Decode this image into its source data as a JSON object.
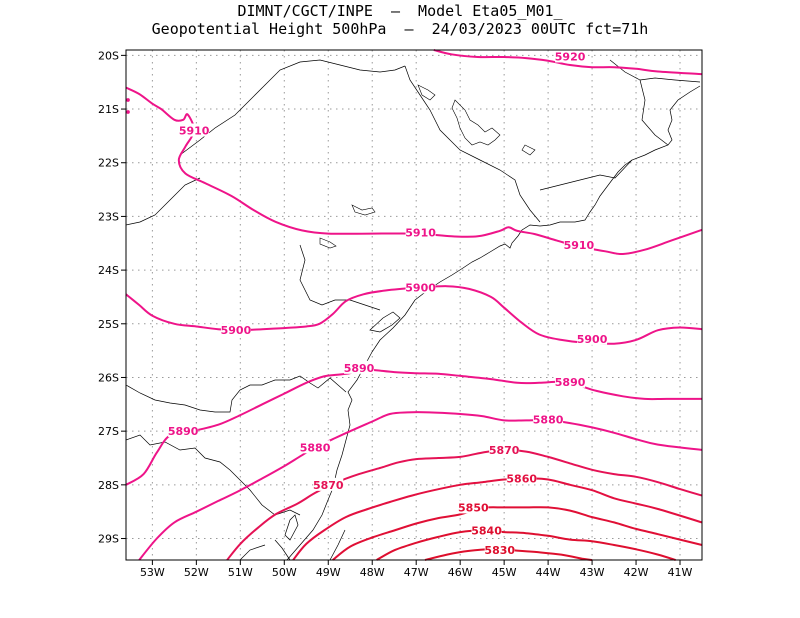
{
  "title": {
    "line1": "DIMNT/CGCT/INPE  –  Model Eta05_M01_",
    "line2": "Geopotential Height 500hPa  –  24/03/2023 00UTC fct=71h"
  },
  "chart_data": {
    "type": "contour",
    "variable": "Geopotential Height 500hPa",
    "lon_range": [
      -53.6,
      -40.5
    ],
    "lat_range": [
      -29.4,
      -19.9
    ],
    "lon_ticks": [
      "53W",
      "52W",
      "51W",
      "50W",
      "49W",
      "48W",
      "47W",
      "46W",
      "45W",
      "44W",
      "43W",
      "42W",
      "41W"
    ],
    "lat_ticks": [
      "20S",
      "21S",
      "22S",
      "23S",
      "24S",
      "25S",
      "26S",
      "27S",
      "28S",
      "29S"
    ],
    "grid": true,
    "colors": {
      "contour_high": "#ee1489",
      "contour_low": "#dd1030",
      "coast": "#000000",
      "grid": "#9a9a9a"
    },
    "contours": [
      {
        "level": 5920,
        "label": "5920",
        "color": "#ee1489",
        "points": [
          [
            -46.6,
            -19.9
          ],
          [
            -46.2,
            -19.98
          ],
          [
            -45.6,
            -20.03
          ],
          [
            -45.0,
            -20.03
          ],
          [
            -44.5,
            -20.05
          ],
          [
            -44.0,
            -20.1
          ],
          [
            -43.5,
            -20.18
          ],
          [
            -43.0,
            -20.22
          ],
          [
            -42.5,
            -20.22
          ],
          [
            -42.0,
            -20.25
          ],
          [
            -41.5,
            -20.3
          ],
          [
            -40.5,
            -20.35
          ]
        ],
        "labels": [
          [
            -43.5,
            -20.02
          ]
        ]
      },
      {
        "level": 5910,
        "label": "5910",
        "color": "#ee1489",
        "points": [
          [
            -53.6,
            -20.6
          ],
          [
            -53.3,
            -20.72
          ],
          [
            -53.0,
            -20.9
          ],
          [
            -52.8,
            -21.0
          ],
          [
            -52.5,
            -21.2
          ],
          [
            -52.3,
            -21.2
          ],
          [
            -52.2,
            -21.1
          ],
          [
            -52.05,
            -21.4
          ],
          [
            -52.25,
            -21.7
          ],
          [
            -52.4,
            -21.95
          ],
          [
            -52.25,
            -22.2
          ],
          [
            -51.8,
            -22.38
          ],
          [
            -51.2,
            -22.62
          ],
          [
            -50.7,
            -22.88
          ],
          [
            -50.2,
            -23.1
          ],
          [
            -49.6,
            -23.26
          ],
          [
            -49.0,
            -23.32
          ],
          [
            -48.0,
            -23.32
          ],
          [
            -47.0,
            -23.32
          ],
          [
            -46.2,
            -23.37
          ],
          [
            -45.6,
            -23.37
          ],
          [
            -45.1,
            -23.27
          ],
          [
            -44.9,
            -23.2
          ],
          [
            -44.7,
            -23.27
          ],
          [
            -44.3,
            -23.33
          ],
          [
            -43.8,
            -23.45
          ],
          [
            -43.3,
            -23.56
          ],
          [
            -42.7,
            -23.65
          ],
          [
            -42.3,
            -23.7
          ],
          [
            -41.8,
            -23.62
          ],
          [
            -41.2,
            -23.45
          ],
          [
            -40.5,
            -23.25
          ]
        ],
        "labels": [
          [
            -52.05,
            -21.4
          ],
          [
            -46.9,
            -23.3
          ],
          [
            -43.3,
            -23.53
          ]
        ]
      },
      {
        "level": 5900,
        "label": "5900",
        "color": "#ee1489",
        "points": [
          [
            -53.6,
            -24.45
          ],
          [
            -53.3,
            -24.65
          ],
          [
            -53.0,
            -24.85
          ],
          [
            -52.5,
            -25.0
          ],
          [
            -52.0,
            -25.05
          ],
          [
            -51.5,
            -25.1
          ],
          [
            -51.0,
            -25.12
          ],
          [
            -50.5,
            -25.1
          ],
          [
            -50.0,
            -25.08
          ],
          [
            -49.5,
            -25.05
          ],
          [
            -49.2,
            -25.0
          ],
          [
            -48.9,
            -24.82
          ],
          [
            -48.6,
            -24.58
          ],
          [
            -48.2,
            -24.45
          ],
          [
            -47.7,
            -24.38
          ],
          [
            -47.0,
            -24.33
          ],
          [
            -46.3,
            -24.3
          ],
          [
            -45.8,
            -24.35
          ],
          [
            -45.3,
            -24.5
          ],
          [
            -45.0,
            -24.7
          ],
          [
            -44.6,
            -24.98
          ],
          [
            -44.2,
            -25.2
          ],
          [
            -43.7,
            -25.3
          ],
          [
            -43.2,
            -25.35
          ],
          [
            -42.5,
            -25.37
          ],
          [
            -42.0,
            -25.3
          ],
          [
            -41.5,
            -25.12
          ],
          [
            -41.0,
            -25.07
          ],
          [
            -40.5,
            -25.1
          ]
        ],
        "labels": [
          [
            -51.1,
            -25.12
          ],
          [
            -46.9,
            -24.32
          ],
          [
            -43.0,
            -25.28
          ]
        ]
      },
      {
        "level": 5890,
        "label": "5890",
        "color": "#ee1489",
        "points": [
          [
            -53.6,
            -28.0
          ],
          [
            -53.2,
            -27.8
          ],
          [
            -52.9,
            -27.4
          ],
          [
            -52.6,
            -27.08
          ],
          [
            -52.1,
            -27.0
          ],
          [
            -51.5,
            -26.88
          ],
          [
            -51.0,
            -26.7
          ],
          [
            -50.5,
            -26.5
          ],
          [
            -50.0,
            -26.3
          ],
          [
            -49.5,
            -26.1
          ],
          [
            -49.1,
            -25.98
          ],
          [
            -48.8,
            -25.95
          ],
          [
            -48.5,
            -25.92
          ],
          [
            -48.2,
            -25.85
          ],
          [
            -47.5,
            -25.9
          ],
          [
            -47.0,
            -25.92
          ],
          [
            -46.5,
            -25.93
          ],
          [
            -46.0,
            -25.97
          ],
          [
            -45.3,
            -26.03
          ],
          [
            -44.7,
            -26.1
          ],
          [
            -44.2,
            -26.1
          ],
          [
            -43.7,
            -26.08
          ],
          [
            -43.3,
            -26.15
          ],
          [
            -42.9,
            -26.25
          ],
          [
            -42.3,
            -26.35
          ],
          [
            -41.8,
            -26.4
          ],
          [
            -41.3,
            -26.4
          ],
          [
            -40.5,
            -26.4
          ]
        ],
        "labels": [
          [
            -52.3,
            -27.0
          ],
          [
            -48.3,
            -25.82
          ],
          [
            -43.5,
            -26.08
          ]
        ]
      },
      {
        "level": 5880,
        "label": "5880",
        "color": "#ee1489",
        "points": [
          [
            -53.3,
            -29.4
          ],
          [
            -52.9,
            -29.0
          ],
          [
            -52.5,
            -28.7
          ],
          [
            -52.0,
            -28.5
          ],
          [
            -51.5,
            -28.3
          ],
          [
            -51.0,
            -28.1
          ],
          [
            -50.5,
            -27.88
          ],
          [
            -50.0,
            -27.65
          ],
          [
            -49.6,
            -27.45
          ],
          [
            -49.3,
            -27.3
          ],
          [
            -48.9,
            -27.15
          ],
          [
            -48.5,
            -27.0
          ],
          [
            -48.0,
            -26.82
          ],
          [
            -47.6,
            -26.68
          ],
          [
            -47.2,
            -26.65
          ],
          [
            -46.7,
            -26.65
          ],
          [
            -46.0,
            -26.68
          ],
          [
            -45.5,
            -26.72
          ],
          [
            -45.0,
            -26.8
          ],
          [
            -44.5,
            -26.8
          ],
          [
            -44.0,
            -26.8
          ],
          [
            -43.5,
            -26.85
          ],
          [
            -43.0,
            -26.93
          ],
          [
            -42.5,
            -27.03
          ],
          [
            -42.0,
            -27.15
          ],
          [
            -41.5,
            -27.25
          ],
          [
            -40.5,
            -27.35
          ]
        ],
        "labels": [
          [
            -49.3,
            -27.3
          ],
          [
            -44.0,
            -26.78
          ]
        ]
      },
      {
        "level": 5870,
        "label": "5870",
        "color": "#e51255",
        "points": [
          [
            -51.3,
            -29.4
          ],
          [
            -51.0,
            -29.1
          ],
          [
            -50.6,
            -28.8
          ],
          [
            -50.2,
            -28.55
          ],
          [
            -49.7,
            -28.35
          ],
          [
            -49.3,
            -28.15
          ],
          [
            -48.8,
            -27.95
          ],
          [
            -48.3,
            -27.8
          ],
          [
            -47.8,
            -27.68
          ],
          [
            -47.4,
            -27.58
          ],
          [
            -47.0,
            -27.52
          ],
          [
            -46.5,
            -27.5
          ],
          [
            -46.0,
            -27.48
          ],
          [
            -45.5,
            -27.4
          ],
          [
            -45.0,
            -27.35
          ],
          [
            -44.5,
            -27.38
          ],
          [
            -44.0,
            -27.48
          ],
          [
            -43.5,
            -27.6
          ],
          [
            -43.0,
            -27.72
          ],
          [
            -42.5,
            -27.8
          ],
          [
            -42.0,
            -27.85
          ],
          [
            -41.5,
            -27.95
          ],
          [
            -41.0,
            -28.08
          ],
          [
            -40.5,
            -28.2
          ]
        ],
        "labels": [
          [
            -49.0,
            -28.0
          ],
          [
            -45.0,
            -27.35
          ]
        ]
      },
      {
        "level": 5860,
        "label": "5860",
        "color": "#e31040",
        "points": [
          [
            -49.8,
            -29.4
          ],
          [
            -49.5,
            -29.1
          ],
          [
            -49.1,
            -28.85
          ],
          [
            -48.6,
            -28.6
          ],
          [
            -48.1,
            -28.45
          ],
          [
            -47.6,
            -28.32
          ],
          [
            -47.1,
            -28.2
          ],
          [
            -46.6,
            -28.1
          ],
          [
            -46.0,
            -28.0
          ],
          [
            -45.5,
            -27.95
          ],
          [
            -45.0,
            -27.9
          ],
          [
            -44.5,
            -27.88
          ],
          [
            -44.0,
            -27.9
          ],
          [
            -43.5,
            -28.0
          ],
          [
            -43.0,
            -28.1
          ],
          [
            -42.5,
            -28.25
          ],
          [
            -42.0,
            -28.35
          ],
          [
            -41.5,
            -28.45
          ],
          [
            -40.5,
            -28.7
          ]
        ],
        "labels": [
          [
            -44.6,
            -27.88
          ]
        ]
      },
      {
        "level": 5850,
        "label": "5850",
        "color": "#e00f35",
        "points": [
          [
            -48.9,
            -29.4
          ],
          [
            -48.5,
            -29.15
          ],
          [
            -48.0,
            -28.98
          ],
          [
            -47.5,
            -28.85
          ],
          [
            -47.0,
            -28.72
          ],
          [
            -46.5,
            -28.62
          ],
          [
            -46.0,
            -28.55
          ],
          [
            -45.5,
            -28.43
          ],
          [
            -45.0,
            -28.42
          ],
          [
            -44.5,
            -28.42
          ],
          [
            -44.0,
            -28.42
          ],
          [
            -43.5,
            -28.48
          ],
          [
            -43.0,
            -28.6
          ],
          [
            -42.5,
            -28.7
          ],
          [
            -42.0,
            -28.82
          ],
          [
            -41.5,
            -28.92
          ],
          [
            -41.0,
            -29.02
          ],
          [
            -40.5,
            -29.12
          ]
        ],
        "labels": [
          [
            -45.7,
            -28.42
          ]
        ]
      },
      {
        "level": 5840,
        "label": "5840",
        "color": "#de0f30",
        "points": [
          [
            -47.9,
            -29.4
          ],
          [
            -47.5,
            -29.22
          ],
          [
            -47.0,
            -29.08
          ],
          [
            -46.5,
            -28.97
          ],
          [
            -46.0,
            -28.88
          ],
          [
            -45.5,
            -28.85
          ],
          [
            -45.0,
            -28.88
          ],
          [
            -44.5,
            -28.9
          ],
          [
            -44.0,
            -28.95
          ],
          [
            -43.5,
            -29.02
          ],
          [
            -43.0,
            -29.05
          ],
          [
            -42.5,
            -29.12
          ],
          [
            -42.0,
            -29.2
          ],
          [
            -41.5,
            -29.3
          ],
          [
            -41.1,
            -29.4
          ]
        ],
        "labels": [
          [
            -45.4,
            -28.85
          ]
        ]
      },
      {
        "level": 5830,
        "label": "5830",
        "color": "#dd0f2c",
        "points": [
          [
            -46.8,
            -29.4
          ],
          [
            -46.3,
            -29.3
          ],
          [
            -45.8,
            -29.23
          ],
          [
            -45.3,
            -29.2
          ],
          [
            -44.8,
            -29.22
          ],
          [
            -44.3,
            -29.25
          ],
          [
            -43.7,
            -29.3
          ],
          [
            -43.2,
            -29.38
          ],
          [
            -43.0,
            -29.4
          ]
        ],
        "labels": [
          [
            -45.1,
            -29.21
          ]
        ]
      }
    ]
  }
}
